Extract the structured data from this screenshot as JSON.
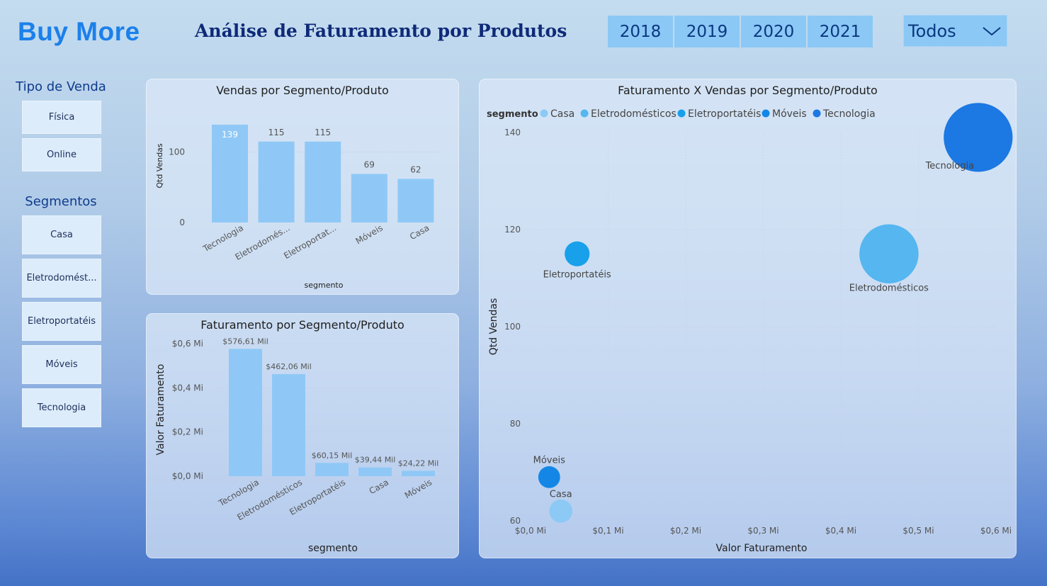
{
  "header": {
    "brand": "Buy More",
    "title": "Análise de Faturamento por Produtos",
    "years": [
      "2018",
      "2019",
      "2020",
      "2021"
    ],
    "dropdown_value": "Todos"
  },
  "sidebar": {
    "tipo_title": "Tipo de Venda",
    "tipo_items": [
      "Física",
      "Online"
    ],
    "segmentos_title": "Segmentos",
    "segmentos_items": [
      "Casa",
      "Eletrodomést...",
      "Eletroportatéis",
      "Móveis",
      "Tecnologia"
    ]
  },
  "colors": {
    "bar": "#8fc8f6",
    "casa": "#8cc9f5",
    "eletrodomesticos": "#55b6f0",
    "eletroportateis": "#18a0ea",
    "moveis": "#1487e6",
    "tecnologia": "#1c78e2"
  },
  "chart_data": [
    {
      "type": "bar",
      "title": "Vendas por Segmento/Produto",
      "xlabel": "segmento",
      "ylabel": "Qtd Vendas",
      "categories": [
        "Tecnologia",
        "Eletrodomés...",
        "Eletroportat...",
        "Móveis",
        "Casa"
      ],
      "values": [
        139,
        115,
        115,
        69,
        62
      ],
      "data_labels": [
        "139",
        "115",
        "115",
        "69",
        "62"
      ],
      "y_ticks": [
        "0",
        "100"
      ],
      "ylim": [
        0,
        150
      ]
    },
    {
      "type": "bar",
      "title": "Faturamento por Segmento/Produto",
      "xlabel": "segmento",
      "ylabel": "Valor Faturamento",
      "categories": [
        "Tecnologia",
        "Eletrodomésticos",
        "Eletroportatéis",
        "Casa",
        "Móveis"
      ],
      "values": [
        576.61,
        462.06,
        60.15,
        39.44,
        24.22
      ],
      "data_labels": [
        "$576,61 Mil",
        "$462,06 Mil",
        "$60,15 Mil",
        "$39,44 Mil",
        "$24,22 Mil"
      ],
      "y_ticks": [
        "$0,0 Mi",
        "$0,2 Mi",
        "$0,4 Mi",
        "$0,6 Mi"
      ],
      "ylim": [
        0,
        600
      ]
    },
    {
      "type": "scatter",
      "title": "Faturamento X Vendas por Segmento/Produto",
      "xlabel": "Valor Faturamento",
      "ylabel": "Qtd Vendas",
      "legend_title": "segmento",
      "legend": [
        "Casa",
        "Eletrodomésticos",
        "Eletroportatéis",
        "Móveis",
        "Tecnologia"
      ],
      "legend_position": "top-left",
      "x_ticks": [
        "$0,0 Mi",
        "$0,1 Mi",
        "$0,2 Mi",
        "$0,3 Mi",
        "$0,4 Mi",
        "$0,5 Mi",
        "$0,6 Mi"
      ],
      "y_ticks": [
        "60",
        "80",
        "100",
        "120",
        "140"
      ],
      "xlim": [
        0,
        0.6
      ],
      "ylim": [
        60,
        140
      ],
      "points": [
        {
          "label": "Tecnologia",
          "x": 0.577,
          "y": 139
        },
        {
          "label": "Eletrodomésticos",
          "x": 0.462,
          "y": 115
        },
        {
          "label": "Eletroportatéis",
          "x": 0.06,
          "y": 115
        },
        {
          "label": "Móveis",
          "x": 0.024,
          "y": 69
        },
        {
          "label": "Casa",
          "x": 0.039,
          "y": 62
        }
      ]
    }
  ]
}
